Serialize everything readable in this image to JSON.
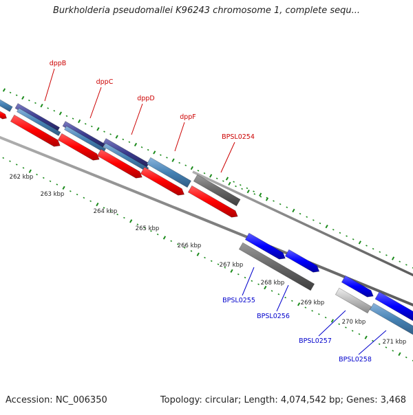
{
  "title": "Burkholderia pseudomallei K96243 chromosome 1, complete sequ...",
  "footer": {
    "accession": "Accession: NC_006350",
    "summary": "Topology: circular; Length: 4,074,542 bp; Genes: 3,468"
  },
  "colors": {
    "background": "#ffffff",
    "forward_label": "#cc0000",
    "reverse_label": "#0000cc",
    "tick": "#1a8a1a",
    "backbone": "#808080",
    "red_feature": "#ff0000",
    "steelblue_feature": "#4682b4",
    "navy_feature": "#3a3a8c",
    "blue_feature": "#0000ff",
    "gray_feature": "#666666",
    "lightgray_feature": "#bbbbbb"
  },
  "scale_labels": [
    "262 kbp",
    "263 kbp",
    "264 kbp",
    "265 kbp",
    "266 kbp",
    "267 kbp",
    "268 kbp",
    "269 kbp",
    "270 kbp",
    "271 kbp"
  ],
  "gene_labels_forward": [
    "dppB",
    "dppC",
    "dppD",
    "dppF",
    "BPSL0254"
  ],
  "gene_labels_reverse": [
    "BPSL0255",
    "BPSL0256",
    "BPSL0257",
    "BPSL0258"
  ]
}
